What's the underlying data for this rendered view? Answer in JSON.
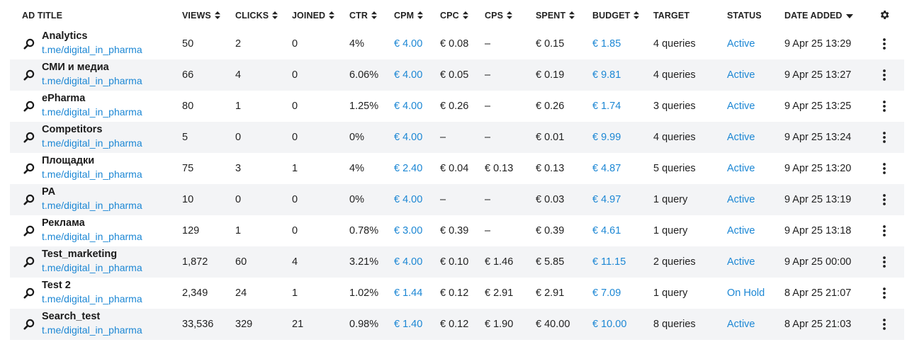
{
  "columns": {
    "ad_title": "AD TITLE",
    "views": "VIEWS",
    "clicks": "CLICKS",
    "joined": "JOINED",
    "ctr": "CTR",
    "cpm": "CPM",
    "cpc": "CPC",
    "cps": "CPS",
    "spent": "SPENT",
    "budget": "BUDGET",
    "target": "TARGET",
    "status": "STATUS",
    "date_added": "DATE ADDED"
  },
  "icons": {
    "row_icon": "search-icon",
    "row_menu": "more-vertical-icon",
    "settings": "gear-icon",
    "sort_both": "sort-arrows-icon",
    "sort_desc": "caret-down-icon"
  },
  "colors": {
    "link": "#1c87d4",
    "row_alt": "#f3f4f6"
  },
  "rows": [
    {
      "title": "Analytics",
      "link": "t.me/digital_in_pharma",
      "views": "50",
      "clicks": "2",
      "joined": "0",
      "ctr": "4%",
      "cpm": "€ 4.00",
      "cpc": "€ 0.08",
      "cps": "–",
      "spent": "€ 0.15",
      "budget": "€ 1.85",
      "target": "4 queries",
      "status": "Active",
      "date": "9 Apr 25 13:29"
    },
    {
      "title": "СМИ и медиа",
      "link": "t.me/digital_in_pharma",
      "views": "66",
      "clicks": "4",
      "joined": "0",
      "ctr": "6.06%",
      "cpm": "€ 4.00",
      "cpc": "€ 0.05",
      "cps": "–",
      "spent": "€ 0.19",
      "budget": "€ 9.81",
      "target": "4 queries",
      "status": "Active",
      "date": "9 Apr 25 13:27"
    },
    {
      "title": "ePharma",
      "link": "t.me/digital_in_pharma",
      "views": "80",
      "clicks": "1",
      "joined": "0",
      "ctr": "1.25%",
      "cpm": "€ 4.00",
      "cpc": "€ 0.26",
      "cps": "–",
      "spent": "€ 0.26",
      "budget": "€ 1.74",
      "target": "3 queries",
      "status": "Active",
      "date": "9 Apr 25 13:25"
    },
    {
      "title": "Competitors",
      "link": "t.me/digital_in_pharma",
      "views": "5",
      "clicks": "0",
      "joined": "0",
      "ctr": "0%",
      "cpm": "€ 4.00",
      "cpc": "–",
      "cps": "–",
      "spent": "€ 0.01",
      "budget": "€ 9.99",
      "target": "4 queries",
      "status": "Active",
      "date": "9 Apr 25 13:24"
    },
    {
      "title": "Площадки",
      "link": "t.me/digital_in_pharma",
      "views": "75",
      "clicks": "3",
      "joined": "1",
      "ctr": "4%",
      "cpm": "€ 2.40",
      "cpc": "€ 0.04",
      "cps": "€ 0.13",
      "spent": "€ 0.13",
      "budget": "€ 4.87",
      "target": "5 queries",
      "status": "Active",
      "date": "9 Apr 25 13:20"
    },
    {
      "title": "PA",
      "link": "t.me/digital_in_pharma",
      "views": "10",
      "clicks": "0",
      "joined": "0",
      "ctr": "0%",
      "cpm": "€ 4.00",
      "cpc": "–",
      "cps": "–",
      "spent": "€ 0.03",
      "budget": "€ 4.97",
      "target": "1 query",
      "status": "Active",
      "date": "9 Apr 25 13:19"
    },
    {
      "title": "Реклама",
      "link": "t.me/digital_in_pharma",
      "views": "129",
      "clicks": "1",
      "joined": "0",
      "ctr": "0.78%",
      "cpm": "€ 3.00",
      "cpc": "€ 0.39",
      "cps": "–",
      "spent": "€ 0.39",
      "budget": "€ 4.61",
      "target": "1 query",
      "status": "Active",
      "date": "9 Apr 25 13:18"
    },
    {
      "title": "Test_marketing",
      "link": "t.me/digital_in_pharma",
      "views": "1,872",
      "clicks": "60",
      "joined": "4",
      "ctr": "3.21%",
      "cpm": "€ 4.00",
      "cpc": "€ 0.10",
      "cps": "€ 1.46",
      "spent": "€ 5.85",
      "budget": "€ 11.15",
      "target": "2 queries",
      "status": "Active",
      "date": "9 Apr 25 00:00"
    },
    {
      "title": "Test 2",
      "link": "t.me/digital_in_pharma",
      "views": "2,349",
      "clicks": "24",
      "joined": "1",
      "ctr": "1.02%",
      "cpm": "€ 1.44",
      "cpc": "€ 0.12",
      "cps": "€ 2.91",
      "spent": "€ 2.91",
      "budget": "€ 7.09",
      "target": "1 query",
      "status": "On Hold",
      "date": "8 Apr 25 21:07"
    },
    {
      "title": "Search_test",
      "link": "t.me/digital_in_pharma",
      "views": "33,536",
      "clicks": "329",
      "joined": "21",
      "ctr": "0.98%",
      "cpm": "€ 1.40",
      "cpc": "€ 0.12",
      "cps": "€ 1.90",
      "spent": "€ 40.00",
      "budget": "€ 10.00",
      "target": "8 queries",
      "status": "Active",
      "date": "8 Apr 25 21:03"
    }
  ]
}
